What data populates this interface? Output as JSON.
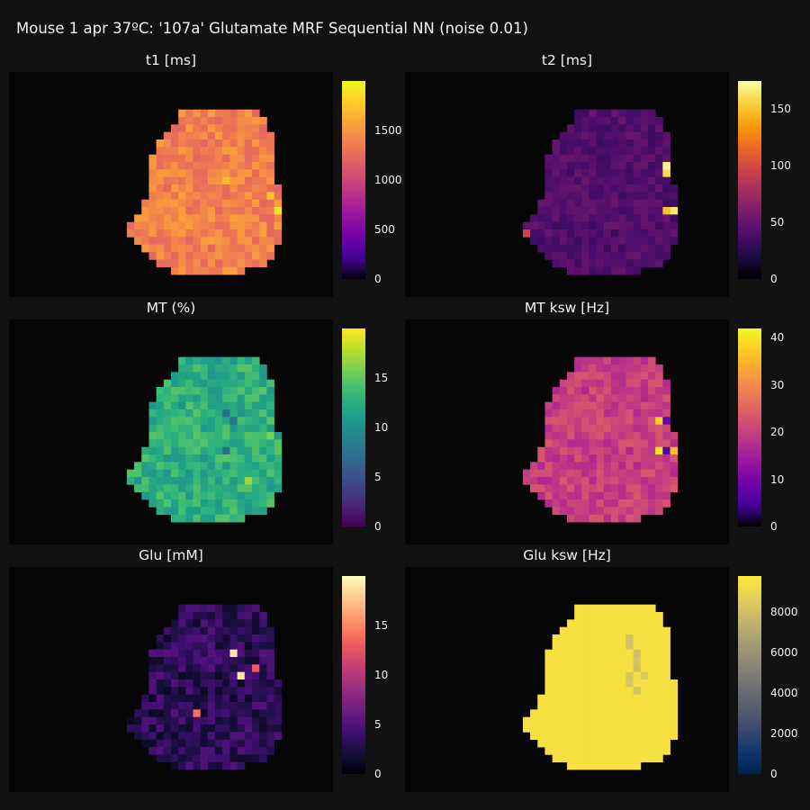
{
  "title": "Mouse 1 apr 37ºC: '107a' Glutamate MRF Sequential NN (noise 0.01)",
  "chart_data": [
    {
      "type": "heatmap",
      "title": "t1 [ms]",
      "colormap": "plasma",
      "zmin": 0,
      "zmax": 2000,
      "colorbar_ticks": [
        0,
        500,
        1000,
        1500
      ],
      "base_value": 1380,
      "variation": 170,
      "hotspots": [
        {
          "row": 8,
          "col": 21,
          "value": 1850
        },
        {
          "row": 9,
          "col": 21,
          "value": 1780
        },
        {
          "row": 11,
          "col": 20,
          "value": 1750
        },
        {
          "row": 13,
          "col": 21,
          "value": 1900
        },
        {
          "row": 12,
          "col": 22,
          "value": 1800
        },
        {
          "row": 16,
          "col": 30,
          "value": 1820
        },
        {
          "row": 9,
          "col": 14,
          "value": 1700
        }
      ]
    },
    {
      "type": "heatmap",
      "title": "t2 [ms]",
      "colormap": "hot",
      "zmin": 0,
      "zmax": 175,
      "colorbar_ticks": [
        0,
        50,
        100,
        150
      ],
      "base_value": 42,
      "variation": 9,
      "hotspots": [
        {
          "row": 7,
          "col": 20,
          "value": 170
        },
        {
          "row": 8,
          "col": 20,
          "value": 160
        },
        {
          "row": 9,
          "col": 21,
          "value": 120
        },
        {
          "row": 11,
          "col": 22,
          "value": 130
        },
        {
          "row": 13,
          "col": 20,
          "value": 150
        },
        {
          "row": 13,
          "col": 21,
          "value": 165
        },
        {
          "row": 13,
          "col": 22,
          "value": 140
        },
        {
          "row": 12,
          "col": 23,
          "value": 110
        },
        {
          "row": 16,
          "col": 27,
          "value": 100
        },
        {
          "row": 16,
          "col": 1,
          "value": 95
        }
      ]
    },
    {
      "type": "heatmap",
      "title": "MT (%)",
      "colormap": "viridis",
      "zmin": 0,
      "zmax": 20,
      "colorbar_ticks": [
        0,
        5,
        10,
        15
      ],
      "base_value": 12.5,
      "variation": 2.2,
      "hotspots": [
        {
          "row": 7,
          "col": 14,
          "value": 7
        },
        {
          "row": 8,
          "col": 15,
          "value": 7.5
        },
        {
          "row": 12,
          "col": 14,
          "value": 7
        },
        {
          "row": 10,
          "col": 20,
          "value": 16
        },
        {
          "row": 14,
          "col": 22,
          "value": 18
        },
        {
          "row": 15,
          "col": 23,
          "value": 19
        },
        {
          "row": 16,
          "col": 17,
          "value": 17
        }
      ]
    },
    {
      "type": "heatmap",
      "title": "MT ksw [Hz]",
      "colormap": "plasma",
      "zmin": 0,
      "zmax": 42,
      "colorbar_ticks": [
        0,
        10,
        20,
        30,
        40
      ],
      "base_value": 20,
      "variation": 3.5,
      "hotspots": [
        {
          "row": 8,
          "col": 19,
          "value": 38
        },
        {
          "row": 8,
          "col": 20,
          "value": 8
        },
        {
          "row": 12,
          "col": 19,
          "value": 40
        },
        {
          "row": 12,
          "col": 20,
          "value": 6
        },
        {
          "row": 12,
          "col": 21,
          "value": 36
        },
        {
          "row": 14,
          "col": 0,
          "value": 30
        },
        {
          "row": 13,
          "col": 27,
          "value": 32
        }
      ]
    },
    {
      "type": "heatmap",
      "title": "Glu [mM]",
      "colormap": "magma",
      "zmin": 0,
      "zmax": 20,
      "colorbar_ticks": [
        0,
        5,
        10,
        15
      ],
      "base_value": 3.2,
      "variation": 2.0,
      "hotspots": [
        {
          "row": 6,
          "col": 15,
          "value": 19
        },
        {
          "row": 9,
          "col": 16,
          "value": 19
        },
        {
          "row": 8,
          "col": 18,
          "value": 13
        },
        {
          "row": 10,
          "col": 24,
          "value": 9
        },
        {
          "row": 14,
          "col": 10,
          "value": 14
        }
      ]
    },
    {
      "type": "heatmap",
      "title": "Glu ksw [Hz]",
      "colormap": "cividis",
      "zmin": 0,
      "zmax": 9800,
      "colorbar_ticks": [
        0,
        2000,
        4000,
        6000,
        8000
      ],
      "base_value": 9500,
      "variation": 0,
      "hotspots": [
        {
          "row": 4,
          "col": 15,
          "value": 8100
        },
        {
          "row": 5,
          "col": 15,
          "value": 8200
        },
        {
          "row": 6,
          "col": 16,
          "value": 8000
        },
        {
          "row": 7,
          "col": 16,
          "value": 8300
        },
        {
          "row": 8,
          "col": 16,
          "value": 8100
        },
        {
          "row": 9,
          "col": 15,
          "value": 8200
        },
        {
          "row": 10,
          "col": 15,
          "value": 8300
        },
        {
          "row": 11,
          "col": 16,
          "value": 8100
        },
        {
          "row": 9,
          "col": 17,
          "value": 8400
        }
      ]
    }
  ]
}
